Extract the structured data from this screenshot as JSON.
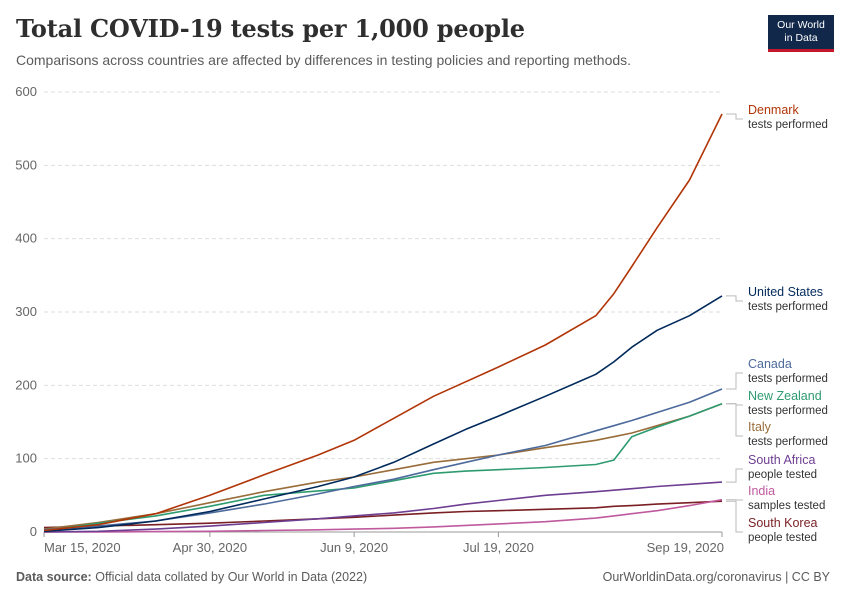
{
  "header": {
    "title": "Total COVID-19 tests per 1,000 people",
    "subtitle": "Comparisons across countries are affected by differences in testing policies and reporting methods."
  },
  "logo": {
    "line1": "Our World",
    "line2": "in Data"
  },
  "footer": {
    "source_label": "Data source:",
    "source_text": "Official data collated by Our World in Data (2022)",
    "credit": "OurWorldinData.org/coronavirus | CC BY"
  },
  "chart_data": {
    "type": "line",
    "title": "Total COVID-19 tests per 1,000 people",
    "xlabel": "",
    "ylabel": "",
    "ylim": [
      0,
      600
    ],
    "y_ticks": [
      0,
      100,
      200,
      300,
      400,
      500,
      600
    ],
    "x_tick_labels": [
      "Mar 15, 2020",
      "Apr 30, 2020",
      "Jun 9, 2020",
      "Jul 19, 2020",
      "Sep 19, 2020"
    ],
    "x": [
      "Mar 15, 2020",
      "Mar 30, 2020",
      "Apr 15, 2020",
      "Apr 30, 2020",
      "May 15, 2020",
      "May 30, 2020",
      "Jun 9, 2020",
      "Jun 20, 2020",
      "Jul 1, 2020",
      "Jul 10, 2020",
      "Jul 19, 2020",
      "Aug 1, 2020",
      "Aug 15, 2020",
      "Aug 20, 2020",
      "Aug 25, 2020",
      "Sep 1, 2020",
      "Sep 10, 2020",
      "Sep 19, 2020"
    ],
    "grid": true,
    "legend": "right, inline labels",
    "series": [
      {
        "name": "Denmark",
        "sublabel": "tests performed",
        "color": "#b13507",
        "values": [
          2,
          10,
          25,
          50,
          78,
          105,
          125,
          155,
          185,
          205,
          225,
          255,
          295,
          325,
          362,
          415,
          480,
          570
        ]
      },
      {
        "name": "United States",
        "sublabel": "tests performed",
        "color": "#00295b",
        "values": [
          1,
          6,
          15,
          28,
          45,
          62,
          75,
          95,
          120,
          140,
          158,
          185,
          215,
          232,
          252,
          275,
          295,
          322
        ]
      },
      {
        "name": "Canada",
        "sublabel": "tests performed",
        "color": "#4c6a9c",
        "values": [
          3,
          8,
          15,
          26,
          38,
          52,
          62,
          72,
          85,
          95,
          105,
          118,
          138,
          145,
          152,
          163,
          177,
          195
        ]
      },
      {
        "name": "New Zealand",
        "sublabel": "tests performed",
        "color": "#2e9b71",
        "values": [
          1,
          12,
          22,
          35,
          50,
          56,
          60,
          70,
          80,
          83,
          85,
          88,
          92,
          98,
          130,
          143,
          158,
          175
        ]
      },
      {
        "name": "Italy",
        "sublabel": "tests performed",
        "color": "#996d39",
        "values": [
          4,
          13,
          25,
          40,
          55,
          68,
          75,
          85,
          95,
          100,
          105,
          115,
          125,
          130,
          135,
          145,
          158,
          175
        ]
      },
      {
        "name": "South Africa",
        "sublabel": "people tested",
        "color": "#6d3e91",
        "values": [
          0,
          1,
          4,
          8,
          13,
          18,
          22,
          26,
          32,
          38,
          43,
          50,
          55,
          57,
          59,
          62,
          65,
          68
        ]
      },
      {
        "name": "India",
        "sublabel": "samples tested",
        "color": "#c05a9e",
        "values": [
          0,
          0,
          0.5,
          1,
          2,
          3,
          4,
          5,
          7,
          9,
          11,
          14,
          19,
          22,
          25,
          29,
          36,
          44
        ]
      },
      {
        "name": "South Korea",
        "sublabel": "people tested",
        "color": "#7a1f23",
        "values": [
          6,
          8,
          10,
          12,
          15,
          18,
          20,
          23,
          26,
          28,
          29,
          31,
          33,
          35,
          36,
          38,
          40,
          42
        ]
      }
    ]
  }
}
